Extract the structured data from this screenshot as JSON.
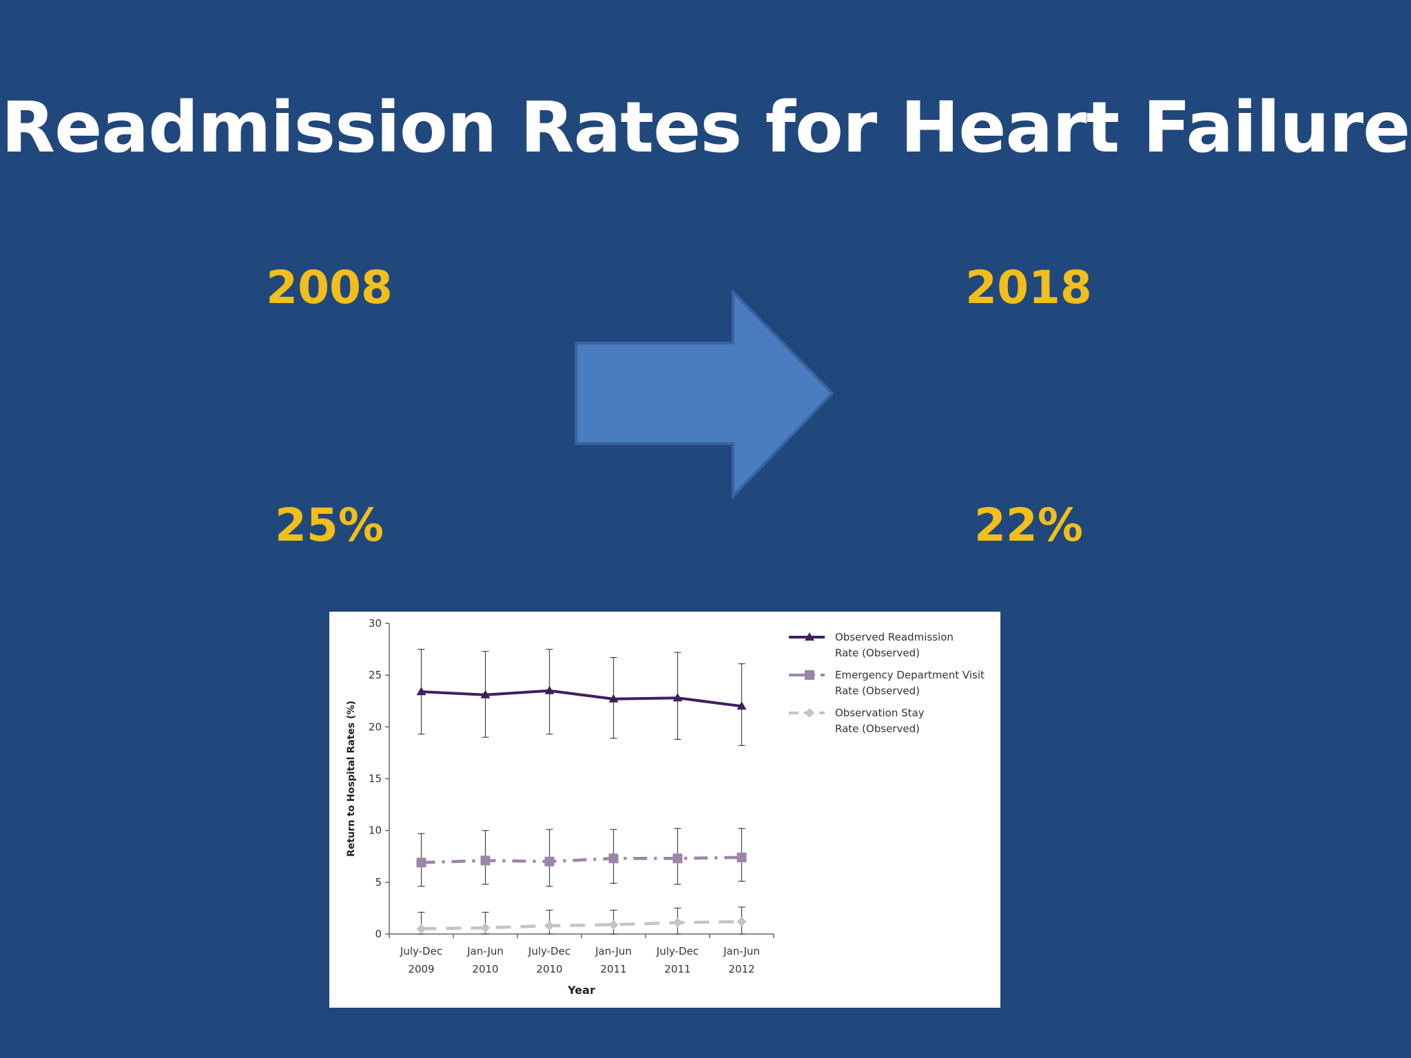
{
  "slide": {
    "title": "Readmission Rates for Heart Failure",
    "left_year": "2008",
    "right_year": "2018",
    "left_value": "25%",
    "right_value": "22%",
    "arrow_icon": "right-arrow-icon"
  },
  "colors": {
    "background": "#21487c",
    "title": "#ffffff",
    "stat": "#f2be1a",
    "arrow_fill": "#4a7cc0",
    "arrow_stroke": "#3a63a0",
    "readmission": "#3e1f5c",
    "ed_visit": "#9e84a9",
    "observation": "#c4c4c4"
  },
  "chart_data": {
    "type": "line",
    "ylabel": "Return to Hospital Rates (%)",
    "xlabel": "Year",
    "ylim": [
      0,
      30
    ],
    "yticks": [
      0,
      5,
      10,
      15,
      20,
      25,
      30
    ],
    "categories": [
      [
        "July-Dec",
        "2009"
      ],
      [
        "Jan-Jun",
        "2010"
      ],
      [
        "July-Dec",
        "2010"
      ],
      [
        "Jan-Jun",
        "2011"
      ],
      [
        "July-Dec",
        "2011"
      ],
      [
        "Jan-Jun",
        "2012"
      ]
    ],
    "legend_position": "right",
    "series": [
      {
        "name": [
          "Observed Readmission",
          "Rate (Observed)"
        ],
        "values": [
          23.4,
          23.1,
          23.5,
          22.7,
          22.8,
          22.0
        ],
        "err_low": [
          19.3,
          19.0,
          19.3,
          18.9,
          18.8,
          18.2
        ],
        "err_high": [
          27.5,
          27.3,
          27.5,
          26.7,
          27.2,
          26.1
        ],
        "style": "solid",
        "marker": "triangle",
        "color": "#3e1f5c"
      },
      {
        "name": [
          "Emergency Department Visit",
          "Rate (Observed)"
        ],
        "values": [
          6.9,
          7.1,
          7.0,
          7.3,
          7.3,
          7.4
        ],
        "err_low": [
          4.6,
          4.8,
          4.6,
          4.9,
          4.8,
          5.1
        ],
        "err_high": [
          9.7,
          10.0,
          10.1,
          10.1,
          10.2,
          10.2
        ],
        "style": "dashdot",
        "marker": "square",
        "color": "#9e84a9"
      },
      {
        "name": [
          "Observation Stay",
          "Rate (Observed)"
        ],
        "values": [
          0.5,
          0.6,
          0.8,
          0.9,
          1.1,
          1.2
        ],
        "err_low": [
          0.0,
          0.0,
          0.0,
          0.0,
          0.0,
          0.0
        ],
        "err_high": [
          2.1,
          2.1,
          2.3,
          2.3,
          2.5,
          2.6
        ],
        "style": "dashed",
        "marker": "diamond",
        "color": "#c4c4c4"
      }
    ]
  }
}
